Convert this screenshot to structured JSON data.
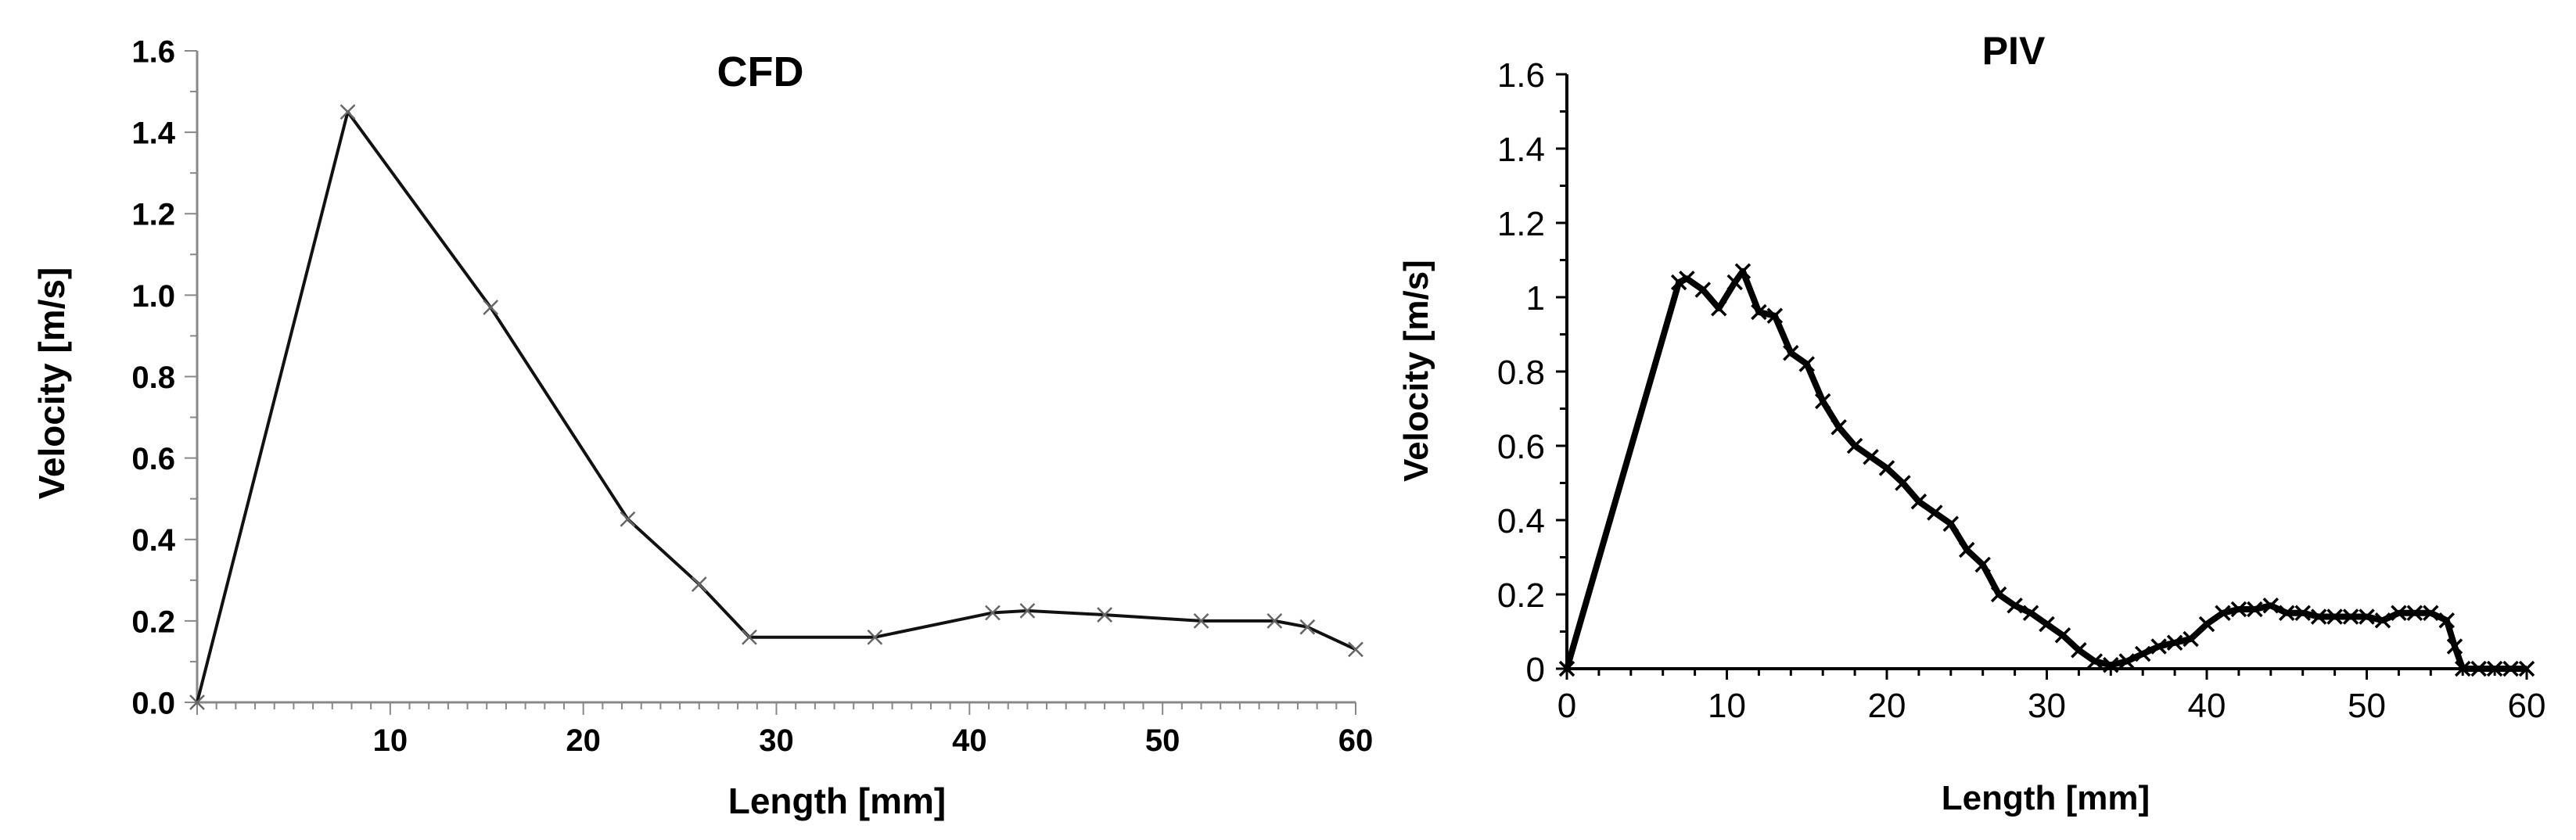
{
  "chart_data": [
    {
      "type": "line",
      "title": "CFD",
      "xlabel": "Length [mm]",
      "ylabel": "Velocity [m/s]",
      "xlim": [
        0,
        60
      ],
      "ylim": [
        0.0,
        1.6
      ],
      "x_tick_labels": [
        "10",
        "20",
        "30",
        "40",
        "50",
        "60"
      ],
      "y_tick_labels": [
        "0.0",
        "0.2",
        "0.4",
        "0.6",
        "0.8",
        "1.0",
        "1.2",
        "1.4",
        "1.6"
      ],
      "grid": false,
      "marker": "x",
      "series": [
        {
          "x": [
            0,
            7.8,
            15.2,
            22.3,
            26,
            28.6,
            35.1,
            41.2,
            43,
            47,
            52,
            55.8,
            57.5,
            60
          ],
          "y": [
            0.0,
            1.45,
            0.97,
            0.45,
            0.29,
            0.16,
            0.16,
            0.22,
            0.225,
            0.215,
            0.2,
            0.2,
            0.185,
            0.13
          ]
        }
      ]
    },
    {
      "type": "line",
      "title": "PIV",
      "xlabel": "Length [mm]",
      "ylabel": "Velocity [m/s]",
      "xlim": [
        0,
        60
      ],
      "ylim": [
        0,
        1.6
      ],
      "x_tick_labels": [
        "0",
        "10",
        "20",
        "30",
        "40",
        "50",
        "60"
      ],
      "y_tick_labels": [
        "0",
        "0.2",
        "0.4",
        "0.6",
        "0.8",
        "1",
        "1.2",
        "1.4",
        "1.6"
      ],
      "grid": false,
      "marker": "x",
      "series": [
        {
          "x": [
            0,
            7,
            7.5,
            8.5,
            9.5,
            10.5,
            11,
            12,
            13,
            14,
            15,
            16,
            17,
            18,
            19,
            20,
            21,
            22,
            23,
            24,
            25,
            26,
            27,
            28,
            29,
            30,
            31,
            32,
            33,
            34,
            35,
            36,
            37,
            38,
            39,
            40,
            41,
            42,
            43,
            44,
            45,
            46,
            47,
            48,
            49,
            50,
            51,
            52,
            53,
            54,
            55,
            55.5,
            56,
            57,
            58,
            59,
            60
          ],
          "y": [
            0,
            1.04,
            1.05,
            1.02,
            0.97,
            1.04,
            1.07,
            0.96,
            0.95,
            0.85,
            0.82,
            0.72,
            0.65,
            0.6,
            0.57,
            0.54,
            0.5,
            0.45,
            0.42,
            0.39,
            0.32,
            0.28,
            0.2,
            0.17,
            0.15,
            0.12,
            0.09,
            0.05,
            0.02,
            0.01,
            0.02,
            0.04,
            0.06,
            0.07,
            0.08,
            0.12,
            0.15,
            0.16,
            0.16,
            0.17,
            0.15,
            0.15,
            0.14,
            0.14,
            0.14,
            0.14,
            0.13,
            0.15,
            0.15,
            0.15,
            0.13,
            0.06,
            0,
            0,
            0,
            0,
            0
          ]
        }
      ]
    }
  ]
}
